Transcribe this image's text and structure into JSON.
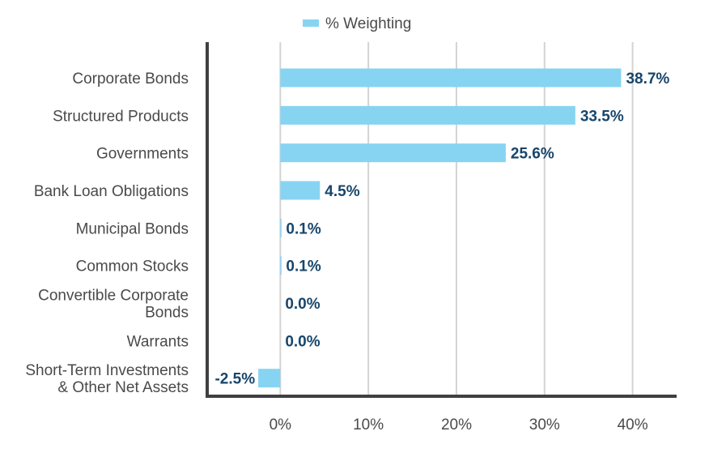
{
  "chart_data": {
    "type": "bar",
    "orientation": "horizontal",
    "title": "",
    "xlabel": "",
    "ylabel": "",
    "categories": [
      "Corporate Bonds",
      "Structured Products",
      "Governments",
      "Bank Loan Obligations",
      "Municipal Bonds",
      "Common Stocks",
      "Convertible Corporate Bonds",
      "Warrants",
      "Short-Term Investments & Other Net Assets"
    ],
    "category_label_lines": [
      [
        "Corporate Bonds"
      ],
      [
        "Structured Products"
      ],
      [
        "Governments"
      ],
      [
        "Bank Loan Obligations"
      ],
      [
        "Municipal Bonds"
      ],
      [
        "Common Stocks"
      ],
      [
        "Convertible Corporate",
        "Bonds"
      ],
      [
        "Warrants"
      ],
      [
        "Short-Term Investments",
        "& Other Net Assets"
      ]
    ],
    "series": [
      {
        "name": "% Weighting",
        "color": "#87d4f2",
        "values": [
          38.7,
          33.5,
          25.6,
          4.5,
          0.1,
          0.1,
          0.0,
          0.0,
          -2.5
        ],
        "labels": [
          "38.7%",
          "33.5%",
          "25.6%",
          "4.5%",
          "0.1%",
          "0.1%",
          "0.0%",
          "0.0%",
          "-2.5%"
        ]
      }
    ],
    "xlim": [
      -8.3,
      45
    ],
    "xticks": [
      0,
      10,
      20,
      30,
      40
    ],
    "xtick_labels": [
      "0%",
      "10%",
      "20%",
      "30%",
      "40%"
    ],
    "grid": "vertical",
    "legend": "top-center",
    "colors": {
      "bar": "#87d4f2",
      "data_label": "#17456b",
      "axis": "#404040",
      "grid": "#d3d3d3",
      "text": "#4a4a4a"
    }
  }
}
